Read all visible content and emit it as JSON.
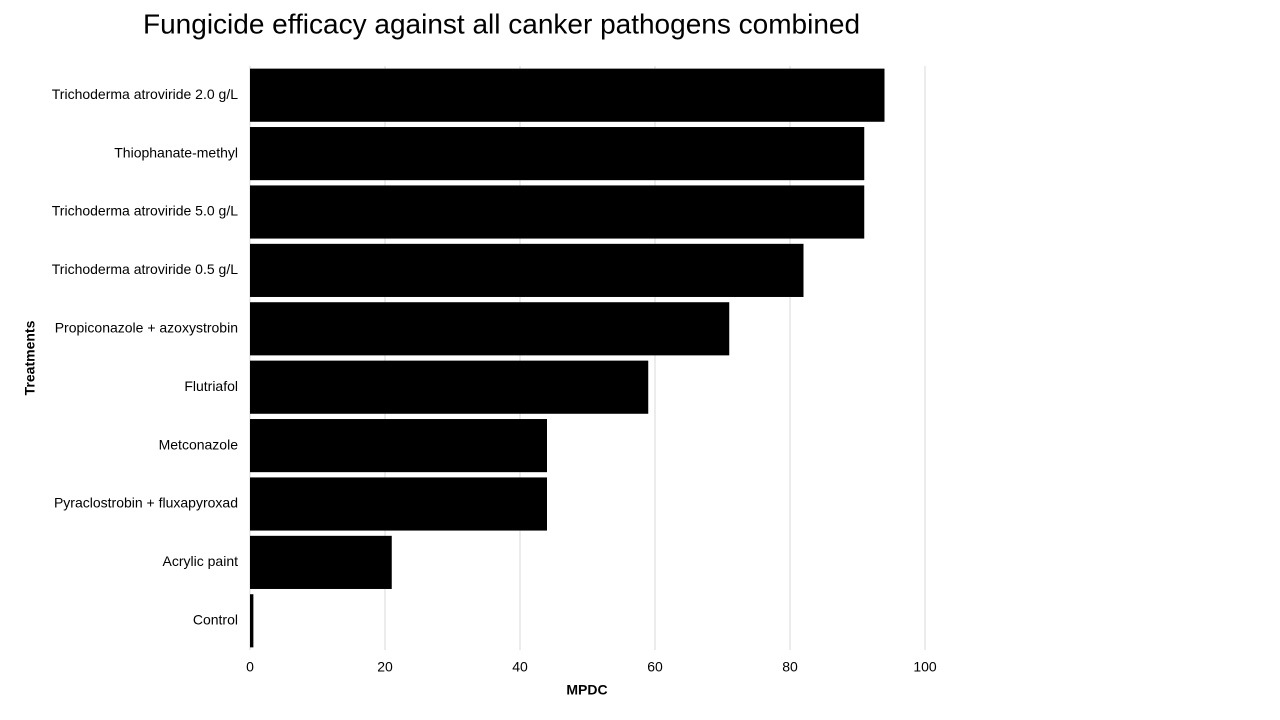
{
  "chart_data": {
    "type": "bar",
    "orientation": "horizontal",
    "title": "Fungicide efficacy against all canker pathogens combined",
    "x_label": "MPDC",
    "y_label": "Treatments",
    "categories": [
      "Trichoderma atroviride 2.0 g/L",
      "Thiophanate-methyl",
      "Trichoderma atroviride 5.0 g/L",
      "Trichoderma atroviride 0.5 g/L",
      "Propiconazole + azoxystrobin",
      "Flutriafol",
      "Metconazole",
      "Pyraclostrobin + fluxapyroxad",
      "Acrylic paint",
      "Control"
    ],
    "values": [
      94,
      91,
      91,
      82,
      71,
      59,
      44,
      44,
      21,
      0.5
    ],
    "color": "#000000",
    "xlim": [
      0,
      100
    ],
    "xticks": [
      0,
      20,
      40,
      60,
      80,
      100
    ],
    "grid": true
  }
}
